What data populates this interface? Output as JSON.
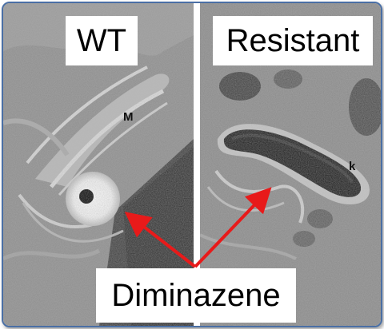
{
  "panels": {
    "left_title": "WT",
    "right_title": "Resistant"
  },
  "markers": {
    "mitochondrion": "M",
    "kinetoplast": "k"
  },
  "callout": {
    "label": "Diminazene",
    "arrow_color": "#e81a1a"
  },
  "frame": {
    "border_color": "#4a6fa5"
  }
}
